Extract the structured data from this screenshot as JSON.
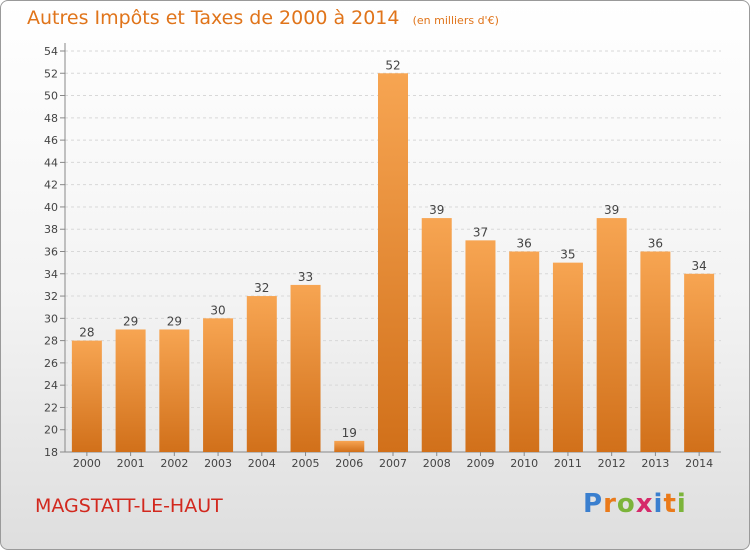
{
  "title": "Autres Impôts et Taxes de 2000 à 2014",
  "subtitle": "(en milliers d'€)",
  "commune": "MAGSTATT-LE-HAUT",
  "logo": [
    "P",
    "r",
    "o",
    "x",
    "i",
    "t",
    "i"
  ],
  "colors": {
    "bar_light": "#f7a552",
    "bar_dark": "#d1701a",
    "title": "#e0741a",
    "commune": "#d2281e"
  },
  "chart_data": {
    "type": "bar",
    "categories": [
      "2000",
      "2001",
      "2002",
      "2003",
      "2004",
      "2005",
      "2006",
      "2007",
      "2008",
      "2009",
      "2010",
      "2011",
      "2012",
      "2013",
      "2014"
    ],
    "values": [
      28,
      29,
      29,
      30,
      32,
      33,
      19,
      52,
      39,
      37,
      36,
      35,
      39,
      36,
      34
    ],
    "ylim": [
      18,
      54
    ],
    "yticks": [
      18,
      20,
      22,
      24,
      26,
      28,
      30,
      32,
      34,
      36,
      38,
      40,
      42,
      44,
      46,
      48,
      50,
      52,
      54
    ],
    "grid": true,
    "xlabel": "",
    "ylabel": ""
  }
}
